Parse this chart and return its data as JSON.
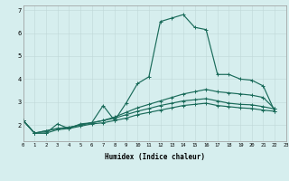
{
  "x": [
    0,
    1,
    2,
    3,
    4,
    5,
    6,
    7,
    8,
    9,
    10,
    11,
    12,
    13,
    14,
    15,
    16,
    17,
    18,
    19,
    20,
    21,
    22,
    23
  ],
  "line1": [
    2.2,
    1.65,
    1.65,
    2.05,
    1.85,
    2.05,
    2.1,
    2.85,
    2.2,
    2.95,
    3.8,
    4.1,
    6.5,
    6.65,
    6.8,
    6.25,
    6.15,
    4.2,
    4.2,
    4.0,
    3.95,
    3.7,
    2.6,
    null
  ],
  "line2": [
    2.2,
    1.65,
    1.65,
    1.8,
    1.85,
    1.95,
    2.05,
    2.1,
    2.2,
    2.3,
    2.45,
    2.55,
    2.65,
    2.75,
    2.85,
    2.9,
    2.95,
    2.85,
    2.8,
    2.75,
    2.72,
    2.65,
    2.6,
    null
  ],
  "line3": [
    2.2,
    1.65,
    1.75,
    1.85,
    1.9,
    2.0,
    2.1,
    2.2,
    2.3,
    2.45,
    2.6,
    2.72,
    2.85,
    2.95,
    3.05,
    3.1,
    3.15,
    3.05,
    2.95,
    2.9,
    2.88,
    2.8,
    2.7,
    null
  ],
  "line4": [
    2.2,
    1.65,
    1.75,
    1.85,
    1.9,
    2.0,
    2.1,
    2.2,
    2.35,
    2.55,
    2.75,
    2.9,
    3.05,
    3.2,
    3.35,
    3.45,
    3.55,
    3.45,
    3.4,
    3.35,
    3.3,
    3.2,
    2.7,
    null
  ],
  "bg_color": "#d6eeee",
  "grid_major_color": "#c0d8d8",
  "grid_minor_color": "#c0d8d8",
  "line_color": "#1a6b5a",
  "xlabel": "Humidex (Indice chaleur)",
  "ylim": [
    1.3,
    7.2
  ],
  "xlim": [
    0,
    23
  ],
  "yticks": [
    2,
    3,
    4,
    5,
    6,
    7
  ],
  "xticks": [
    0,
    1,
    2,
    3,
    4,
    5,
    6,
    7,
    8,
    9,
    10,
    11,
    12,
    13,
    14,
    15,
    16,
    17,
    18,
    19,
    20,
    21,
    22,
    23
  ]
}
